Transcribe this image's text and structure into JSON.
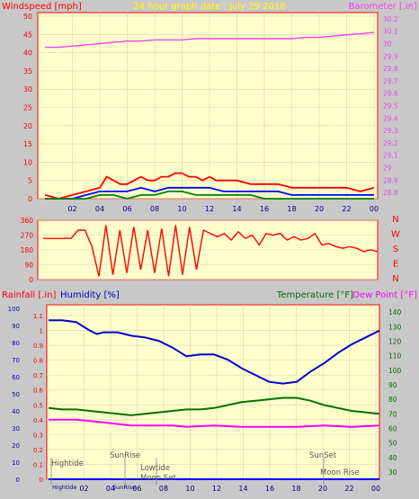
{
  "title": "24 hour graph date : July 29 2018",
  "colors": {
    "background": "#c8c8c8",
    "plot_bg": "#ffffcc",
    "frame": "#ff0000",
    "title": "#ffff00",
    "grid": "#d8d0b0",
    "wind": "#ff0000",
    "gust_blue": "#0000ff",
    "gust_green": "#008000",
    "barometer": "#ee44ee",
    "humidity": "#0000cc",
    "temperature": "#007000",
    "dewpoint": "#ff00ff"
  },
  "chart_data": [
    {
      "type": "line",
      "name": "wind-barometer",
      "title": "24 hour graph date : July 29 2018",
      "left_axis_label": "Windspeed [mph]",
      "right_axis_label": "Barometer [.in]",
      "left_ticks": [
        "0",
        "5",
        "10",
        "15",
        "20",
        "25",
        "30",
        "35",
        "40",
        "45",
        "50"
      ],
      "right_ticks": [
        "28.8",
        "28.9",
        "29",
        "29.1",
        "29.2",
        "29.3",
        "29.4",
        "29.5",
        "29.6",
        "29.7",
        "29.8",
        "29.9",
        "30",
        "30.1",
        "30.2"
      ],
      "x_ticks": [
        "02",
        "04",
        "06",
        "08",
        "10",
        "12",
        "14",
        "16",
        "18",
        "20",
        "22",
        "00"
      ],
      "left_range": [
        0,
        50
      ],
      "right_range": [
        28.75,
        30.25
      ],
      "series": [
        {
          "name": "barometer",
          "axis": "right",
          "x": [
            0,
            1,
            2,
            3,
            4,
            5,
            6,
            7,
            8,
            9,
            10,
            11,
            12,
            13,
            14,
            15,
            16,
            17,
            18,
            19,
            20,
            21,
            22,
            23,
            24
          ],
          "values": [
            29.97,
            29.97,
            29.98,
            29.99,
            30.0,
            30.01,
            30.02,
            30.02,
            30.03,
            30.03,
            30.03,
            30.04,
            30.04,
            30.04,
            30.04,
            30.04,
            30.04,
            30.04,
            30.04,
            30.05,
            30.05,
            30.06,
            30.07,
            30.08,
            30.09
          ]
        },
        {
          "name": "wind gust",
          "axis": "left",
          "x": [
            0,
            1,
            2,
            3,
            4,
            4.5,
            5,
            5.5,
            6,
            6.5,
            7,
            7.5,
            8,
            8.5,
            9,
            9.5,
            10,
            10.5,
            11,
            11.5,
            12,
            12.5,
            13,
            14,
            15,
            16,
            17,
            18,
            19,
            20,
            21,
            22,
            23,
            24
          ],
          "values": [
            1,
            0,
            1,
            2,
            3,
            6,
            5,
            4,
            4,
            5,
            6,
            5,
            5,
            6,
            6,
            7,
            7,
            6,
            6,
            5,
            6,
            5,
            5,
            5,
            4,
            4,
            4,
            3,
            3,
            3,
            3,
            3,
            2,
            3
          ]
        },
        {
          "name": "wind average",
          "axis": "left",
          "x": [
            0,
            2,
            3,
            4,
            5,
            6,
            7,
            8,
            9,
            10,
            11,
            12,
            13,
            14,
            15,
            16,
            17,
            18,
            19,
            20,
            21,
            22,
            23,
            24
          ],
          "values": [
            0,
            0,
            1,
            2,
            2,
            2,
            3,
            2,
            3,
            3,
            3,
            3,
            2,
            2,
            2,
            2,
            2,
            1,
            1,
            1,
            1,
            1,
            1,
            1
          ]
        },
        {
          "name": "wind low",
          "axis": "left",
          "x": [
            0,
            3,
            4,
            5,
            6,
            7,
            8,
            9,
            10,
            11,
            12,
            13,
            14,
            15,
            16,
            17,
            18,
            19,
            24
          ],
          "values": [
            0,
            0,
            1,
            1,
            0,
            1,
            1,
            2,
            2,
            1,
            1,
            1,
            1,
            1,
            0,
            0,
            0,
            0,
            0
          ]
        }
      ]
    },
    {
      "type": "line",
      "name": "wind-direction",
      "right_ticks": [
        "N",
        "W",
        "S",
        "E",
        "N"
      ],
      "left_ticks": [
        "360",
        "270",
        "180",
        "90",
        "0"
      ],
      "range": [
        0,
        360
      ],
      "x": [
        0,
        1,
        2,
        2.5,
        3,
        3.5,
        4,
        4.5,
        5,
        5.5,
        6,
        6.5,
        7,
        7.5,
        8,
        8.5,
        9,
        9.5,
        10,
        10.5,
        11,
        11.5,
        12,
        12.5,
        13,
        13.5,
        14,
        14.5,
        15,
        15.5,
        16,
        16.5,
        17,
        17.5,
        18,
        18.5,
        19,
        19.5,
        20,
        20.5,
        21,
        21.5,
        22,
        22.5,
        23,
        23.5,
        24
      ],
      "values": [
        250,
        250,
        250,
        300,
        300,
        200,
        20,
        330,
        30,
        300,
        40,
        320,
        60,
        300,
        40,
        310,
        20,
        330,
        30,
        320,
        60,
        300,
        280,
        260,
        280,
        240,
        290,
        250,
        270,
        210,
        280,
        270,
        280,
        240,
        260,
        240,
        250,
        280,
        210,
        220,
        200,
        190,
        200,
        190,
        170,
        180,
        170
      ]
    },
    {
      "type": "line",
      "name": "temperature-humidity",
      "left_axis_label_1": "Rainfall [.in]",
      "left_axis_label_2": "Humidity [%]",
      "right_axis_label_1": "Temperature [°F]",
      "right_axis_label_2": "Dew Point [°F]",
      "humidity_ticks": [
        "0",
        "10",
        "20",
        "30",
        "40",
        "50",
        "60",
        "70",
        "80",
        "90",
        "100"
      ],
      "rain_ticks": [
        "0",
        "0.1",
        "0.2",
        "0.3",
        "0.4",
        "0.5",
        "0.6",
        "0.7",
        "0.8",
        "0.9",
        "1",
        "1.1"
      ],
      "temp_ticks": [
        "30",
        "40",
        "50",
        "60",
        "70",
        "80",
        "90",
        "100",
        "110",
        "120",
        "130",
        "140"
      ],
      "x_ticks": [
        "02",
        "04",
        "06",
        "08",
        "10",
        "12",
        "14",
        "16",
        "18",
        "20",
        "22",
        "00"
      ],
      "temp_range": [
        25,
        145
      ],
      "series": [
        {
          "name": "humidity",
          "axis": "left",
          "x": [
            0,
            1,
            2,
            3,
            3.5,
            4,
            5,
            6,
            7,
            8,
            9,
            10,
            11,
            12,
            13,
            14,
            15,
            16,
            17,
            18,
            19,
            20,
            21,
            22,
            23,
            24
          ],
          "values": [
            93,
            93,
            92,
            87,
            85,
            86,
            86,
            84,
            83,
            81,
            77,
            72,
            73,
            73,
            70,
            65,
            61,
            57,
            56,
            57,
            63,
            68,
            74,
            79,
            83,
            87
          ]
        },
        {
          "name": "temperature",
          "axis": "right",
          "x": [
            0,
            1,
            2,
            3,
            4,
            5,
            6,
            7,
            8,
            9,
            10,
            11,
            12,
            13,
            14,
            15,
            16,
            17,
            18,
            19,
            20,
            21,
            22,
            23,
            24
          ],
          "values": [
            74,
            73,
            73,
            72,
            71,
            70,
            69,
            70,
            71,
            72,
            73,
            73,
            74,
            76,
            78,
            79,
            80,
            81,
            81,
            79,
            76,
            74,
            72,
            71,
            70
          ]
        },
        {
          "name": "dew point",
          "axis": "right",
          "x": [
            0,
            2,
            3,
            4,
            5,
            6,
            7,
            8,
            9,
            10,
            12,
            14,
            16,
            18,
            20,
            22,
            24
          ],
          "values": [
            66,
            66,
            65,
            64,
            63,
            62,
            62,
            62,
            62,
            61,
            62,
            61,
            61,
            61,
            62,
            61,
            62
          ]
        },
        {
          "name": "rainfall",
          "axis": "left",
          "x": [
            0,
            24
          ],
          "values": [
            0,
            0
          ]
        }
      ],
      "annotations": [
        "Hightide",
        "SunRise",
        "Lowtide",
        "Moon Set",
        "SunSet",
        "Moon Rise"
      ],
      "bottom_labels": [
        "Hightide",
        "SunRise"
      ]
    }
  ]
}
